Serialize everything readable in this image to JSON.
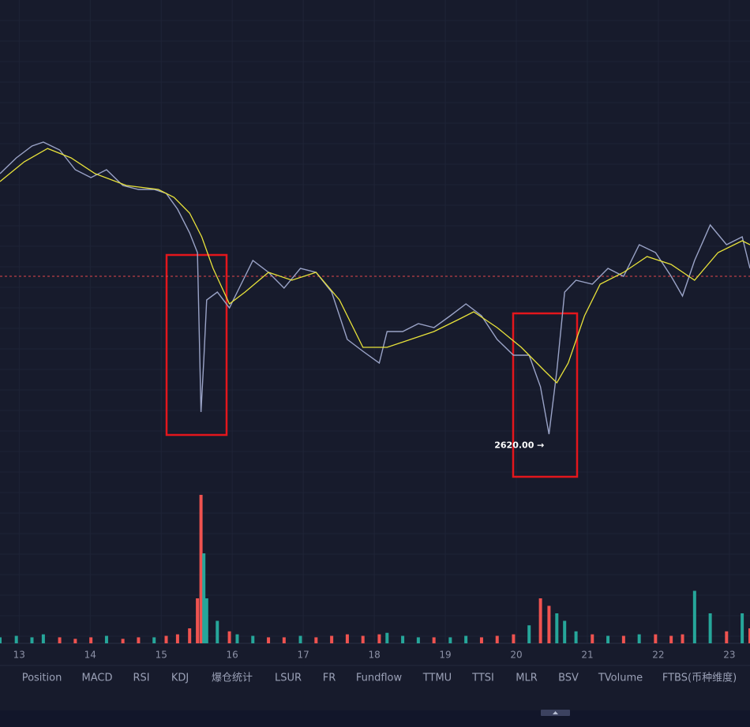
{
  "chart_data": [
    {
      "type": "line",
      "xlim": [
        12.73,
        23.29
      ],
      "ylim": [
        2518,
        3510
      ],
      "xticks": [
        13,
        14,
        15,
        16,
        17,
        18,
        19,
        20,
        21,
        22,
        23
      ],
      "price_line": 2950,
      "price_line_color": "#e0474c",
      "annotation": {
        "label": "2620.00 →",
        "x": 20.46,
        "value": 2620
      },
      "series": [
        {
          "color": "#9aa3c7",
          "x": [
            12.73,
            12.96,
            13.18,
            13.34,
            13.57,
            13.79,
            14.01,
            14.23,
            14.46,
            14.68,
            14.9,
            15.07,
            15.23,
            15.4,
            15.51,
            15.56,
            15.6,
            15.64,
            15.79,
            15.96,
            16.07,
            16.29,
            16.51,
            16.73,
            16.96,
            17.18,
            17.4,
            17.62,
            17.84,
            18.07,
            18.18,
            18.4,
            18.62,
            18.84,
            19.07,
            19.29,
            19.51,
            19.73,
            19.96,
            20.18,
            20.34,
            20.46,
            20.57,
            20.68,
            20.84,
            21.07,
            21.29,
            21.51,
            21.73,
            21.96,
            22.18,
            22.34,
            22.51,
            22.73,
            22.96,
            23.18,
            23.29
          ],
          "values": [
            3158,
            3190,
            3214,
            3222,
            3206,
            3166,
            3150,
            3166,
            3134,
            3126,
            3126,
            3118,
            3086,
            3038,
            2998,
            2675,
            2782,
            2902,
            2918,
            2886,
            2918,
            2982,
            2958,
            2926,
            2966,
            2958,
            2918,
            2822,
            2798,
            2774,
            2838,
            2838,
            2854,
            2846,
            2870,
            2894,
            2870,
            2822,
            2790,
            2790,
            2726,
            2630,
            2758,
            2918,
            2942,
            2934,
            2966,
            2950,
            3014,
            2998,
            2950,
            2910,
            2982,
            3054,
            3014,
            3030,
            2966
          ]
        },
        {
          "color": "#e8e23a",
          "x": [
            12.73,
            13.07,
            13.4,
            13.73,
            14.07,
            14.51,
            14.96,
            15.18,
            15.4,
            15.57,
            15.73,
            15.96,
            16.18,
            16.51,
            16.84,
            17.18,
            17.51,
            17.84,
            18.18,
            18.51,
            18.84,
            19.18,
            19.4,
            19.73,
            20.07,
            20.4,
            20.57,
            20.73,
            20.96,
            21.18,
            21.51,
            21.84,
            22.18,
            22.51,
            22.84,
            23.18,
            23.29
          ],
          "values": [
            3142,
            3182,
            3209,
            3190,
            3158,
            3134,
            3126,
            3110,
            3078,
            3030,
            2966,
            2894,
            2918,
            2958,
            2942,
            2958,
            2902,
            2806,
            2806,
            2822,
            2838,
            2862,
            2878,
            2846,
            2806,
            2758,
            2734,
            2774,
            2870,
            2934,
            2958,
            2990,
            2974,
            2942,
            2998,
            3022,
            3014
          ]
        }
      ]
    },
    {
      "type": "bar",
      "xlim": [
        12.73,
        23.29
      ],
      "ylim": [
        0,
        100
      ],
      "up_color": "#26a69a",
      "down_color": "#ef5350",
      "x": [
        12.73,
        12.96,
        13.18,
        13.34,
        13.57,
        13.79,
        14.01,
        14.23,
        14.46,
        14.68,
        14.9,
        15.07,
        15.23,
        15.4,
        15.51,
        15.56,
        15.6,
        15.64,
        15.79,
        15.96,
        16.07,
        16.29,
        16.51,
        16.73,
        16.96,
        17.18,
        17.4,
        17.62,
        17.84,
        18.07,
        18.18,
        18.4,
        18.62,
        18.84,
        19.07,
        19.29,
        19.51,
        19.73,
        19.96,
        20.18,
        20.34,
        20.46,
        20.57,
        20.68,
        20.84,
        21.07,
        21.29,
        21.51,
        21.73,
        21.96,
        22.18,
        22.34,
        22.51,
        22.73,
        22.96,
        23.18,
        23.29
      ],
      "values": [
        4,
        5,
        4,
        6,
        4,
        3,
        4,
        5,
        3,
        4,
        4,
        5,
        6,
        10,
        30,
        99,
        60,
        30,
        15,
        8,
        6,
        5,
        4,
        4,
        5,
        4,
        5,
        6,
        5,
        6,
        7,
        5,
        4,
        4,
        4,
        5,
        4,
        5,
        6,
        12,
        30,
        25,
        20,
        15,
        8,
        6,
        5,
        5,
        6,
        6,
        5,
        6,
        35,
        20,
        8,
        20,
        10
      ]
    }
  ],
  "tabs": [
    "Position",
    "MACD",
    "RSI",
    "KDJ",
    "爆仓统计",
    "LSUR",
    "FR",
    "Fundflow",
    "TTMU",
    "TTSI",
    "MLR",
    "BSV",
    "TVolume",
    "FTBS(币种维度)"
  ]
}
